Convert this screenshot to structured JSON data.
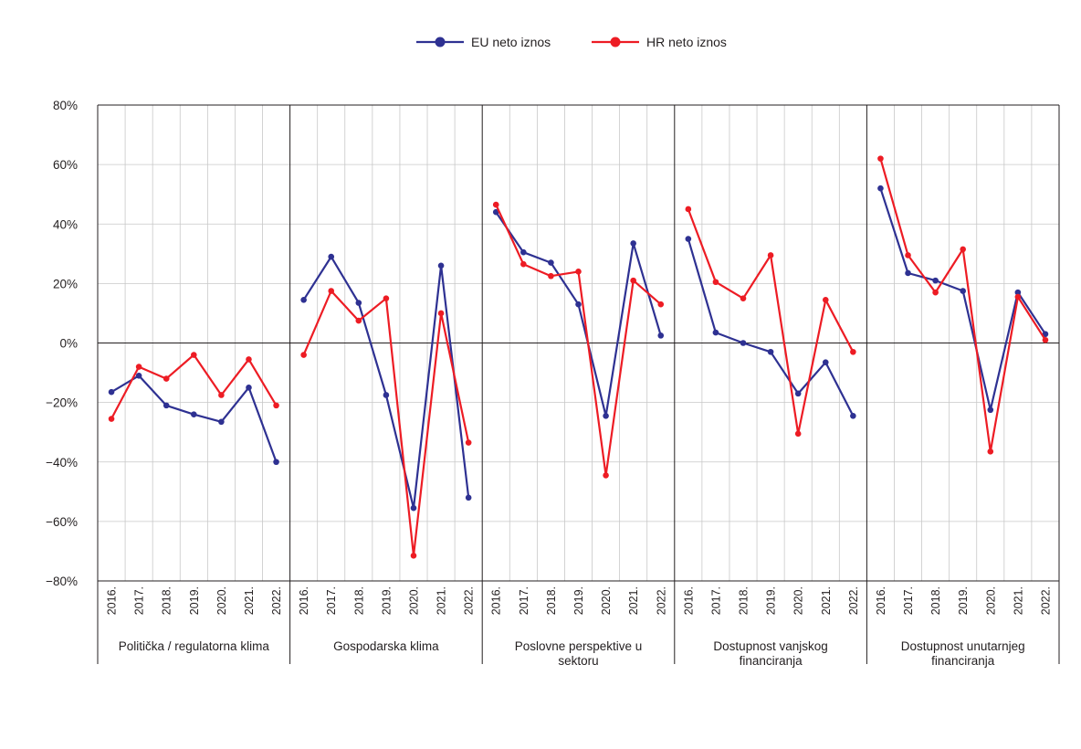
{
  "chart_data": {
    "type": "line",
    "title": "",
    "xlabel": "",
    "ylabel": "",
    "ylim": [
      -80,
      80
    ],
    "y_ticks": [
      "80%",
      "60%",
      "40%",
      "20%",
      "0%",
      "−20%",
      "−40%",
      "−60%",
      "−80%"
    ],
    "y_tick_values": [
      80,
      60,
      40,
      20,
      0,
      -20,
      -40,
      -60,
      -80
    ],
    "years": [
      "2016.",
      "2017.",
      "2018.",
      "2019.",
      "2020.",
      "2021.",
      "2022."
    ],
    "grid": true,
    "legend_position": "top-center",
    "groups": [
      {
        "label_lines": [
          "Politička / regulatorna klima"
        ]
      },
      {
        "label_lines": [
          "Gospodarska klima"
        ]
      },
      {
        "label_lines": [
          "Poslovne perspektive u",
          "sektoru"
        ]
      },
      {
        "label_lines": [
          "Dostupnost vanjskog",
          "financiranja"
        ]
      },
      {
        "label_lines": [
          "Dostupnost unutarnjeg",
          "financiranja"
        ]
      }
    ],
    "series": [
      {
        "name": "EU neto iznos",
        "color": "#2e3192",
        "values": [
          [
            -16.5,
            -11,
            -21,
            -24,
            -26.5,
            -15,
            -40
          ],
          [
            14.5,
            29,
            13.5,
            -17.5,
            -55.5,
            26,
            -52
          ],
          [
            44,
            30.5,
            27,
            13,
            -24.5,
            33.5,
            2.5
          ],
          [
            35,
            3.5,
            0,
            -3,
            -17,
            -6.5,
            -24.5
          ],
          [
            52,
            23.5,
            21,
            17.5,
            -22.5,
            17,
            3
          ]
        ]
      },
      {
        "name": "HR neto iznos",
        "color": "#ed1c24",
        "values": [
          [
            -25.5,
            -8,
            -12,
            -4,
            -17.5,
            -5.5,
            -21
          ],
          [
            -4,
            17.5,
            7.5,
            15,
            -71.5,
            10,
            -33.5
          ],
          [
            46.5,
            26.5,
            22.5,
            24,
            -44.5,
            21,
            13
          ],
          [
            45,
            20.5,
            15,
            29.5,
            -30.5,
            14.5,
            -3
          ],
          [
            62,
            29.5,
            17,
            31.5,
            -36.5,
            15.5,
            1
          ]
        ]
      }
    ]
  }
}
